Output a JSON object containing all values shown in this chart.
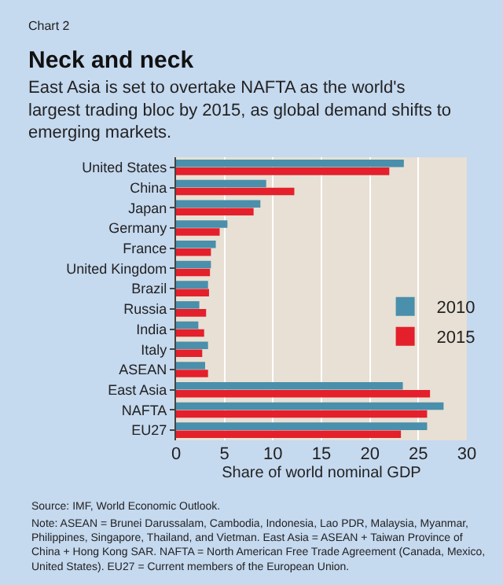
{
  "chart_data": {
    "type": "bar",
    "orientation": "horizontal",
    "title": "Neck and neck",
    "subtitle": "East Asia is set to overtake NAFTA as the world's largest trading bloc by 2015, as global demand shifts to emerging markets.",
    "xlabel": "Share of world nominal GDP",
    "categories": [
      "United States",
      "China",
      "Japan",
      "Germany",
      "France",
      "United Kingdom",
      "Brazil",
      "Russia",
      "India",
      "Italy",
      "ASEAN",
      "East Asia",
      "NAFTA",
      "EU27"
    ],
    "series": [
      {
        "name": "2010",
        "color": "#4a8fab",
        "values": [
          23.5,
          9.3,
          8.7,
          5.3,
          4.1,
          3.6,
          3.3,
          2.4,
          2.3,
          3.3,
          3.0,
          23.4,
          27.6,
          25.9
        ]
      },
      {
        "name": "2015",
        "color": "#e3202b",
        "values": [
          22.0,
          12.2,
          8.0,
          4.5,
          3.6,
          3.5,
          3.4,
          3.1,
          2.9,
          2.7,
          3.3,
          26.2,
          25.9,
          23.2
        ]
      }
    ],
    "xlim": [
      0,
      30
    ],
    "xticks": [
      0,
      5,
      10,
      15,
      20,
      25,
      30
    ],
    "grid": "x",
    "legend": "right",
    "annotations": [
      "Chart 2",
      "Source: IMF, World Economic Outlook.",
      "Note: ASEAN = Brunei Darussalam, Cambodia, Indonesia, Lao PDR, Malaysia, Myanmar, Philippines, Singapore, Thailand, and Vietman. East Asia = ASEAN + Taiwan Province of China + Hong Kong SAR. NAFTA = North American Free Trade Agreement (Canada, Mexico, United States). EU27 = Current members of the European Union."
    ]
  }
}
